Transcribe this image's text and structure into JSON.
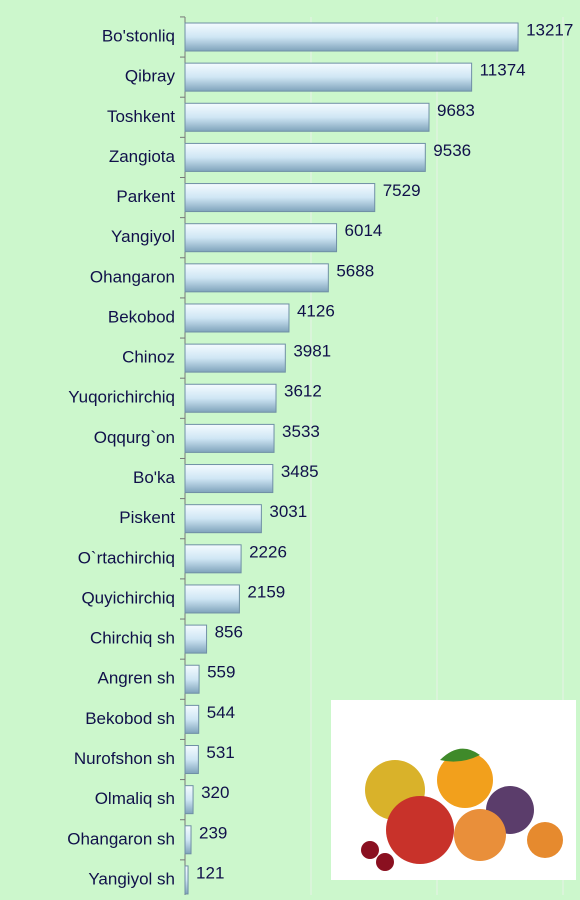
{
  "chart_data": {
    "type": "barh",
    "categories": [
      "Bo'stonliq",
      "Qibray",
      "Toshkent",
      "Zangiota",
      "Parkent",
      "Yangiyol",
      "Ohangaron",
      "Bekobod",
      "Chinoz",
      "Yuqorichirchiq",
      "Oqqurg`on",
      "Bo'ka",
      "Piskent",
      "O`rtachirchiq",
      "Quyichirchiq",
      "Chirchiq sh",
      "Angren sh",
      "Bekobod sh",
      "Nurofshon sh",
      "Olmaliq sh",
      "Ohangaron sh",
      "Yangiyol sh"
    ],
    "values": [
      13217,
      11374,
      9683,
      9536,
      7529,
      6014,
      5688,
      4126,
      3981,
      3612,
      3533,
      3485,
      3031,
      2226,
      2159,
      856,
      559,
      544,
      531,
      320,
      239,
      121
    ],
    "color": "#cfe6f4",
    "xlim": [
      0,
      15000
    ],
    "xticks": [
      0,
      5000,
      10000,
      15000
    ],
    "grid": true
  }
}
